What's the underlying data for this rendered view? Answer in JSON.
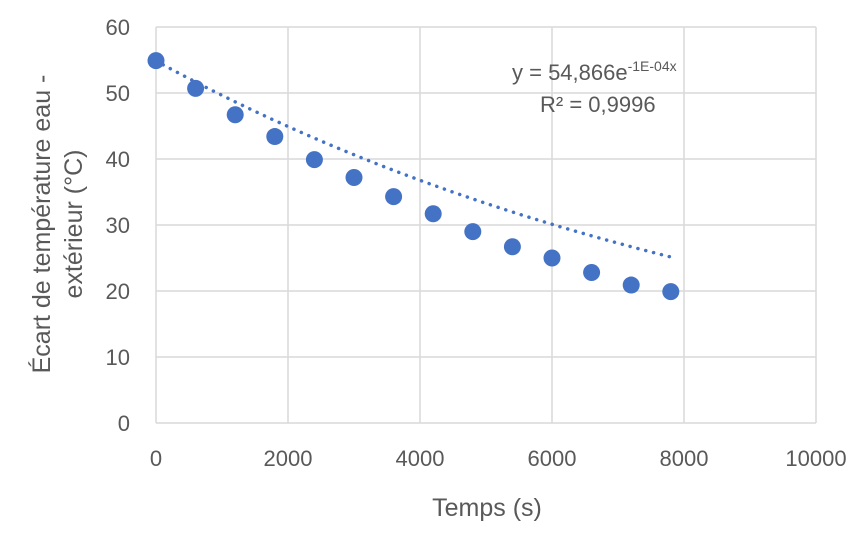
{
  "chart_data": {
    "type": "scatter",
    "title": "",
    "xlabel": "Temps (s)",
    "ylabel_lines": [
      "Écart de température eau -",
      "extérieur (°C)"
    ],
    "xlim": [
      0,
      10000
    ],
    "ylim": [
      0,
      60
    ],
    "x_ticks": [
      "0",
      "2000",
      "4000",
      "6000",
      "8000",
      "10000"
    ],
    "y_ticks": [
      "0",
      "10",
      "20",
      "30",
      "40",
      "50",
      "60"
    ],
    "grid": true,
    "series": [
      {
        "x": [
          0,
          600,
          1200,
          1800,
          2400,
          3000,
          3600,
          4200,
          4800,
          5400,
          6000,
          6600,
          7200,
          7800
        ],
        "y": [
          54.9,
          50.7,
          46.7,
          43.4,
          39.9,
          37.2,
          34.3,
          31.7,
          29.0,
          26.7,
          25.0,
          22.8,
          20.9,
          19.9
        ],
        "color": "#4472c4"
      }
    ],
    "trendline": {
      "type": "exponential",
      "a": 54.866,
      "b": -0.0001,
      "x_range": [
        0,
        7800
      ],
      "style": "dotted",
      "color": "#4472c4",
      "equation_prefix": "y = 54,866e",
      "equation_exponent": "-1E-04x",
      "r2_label": "R² = 0,9996"
    }
  }
}
